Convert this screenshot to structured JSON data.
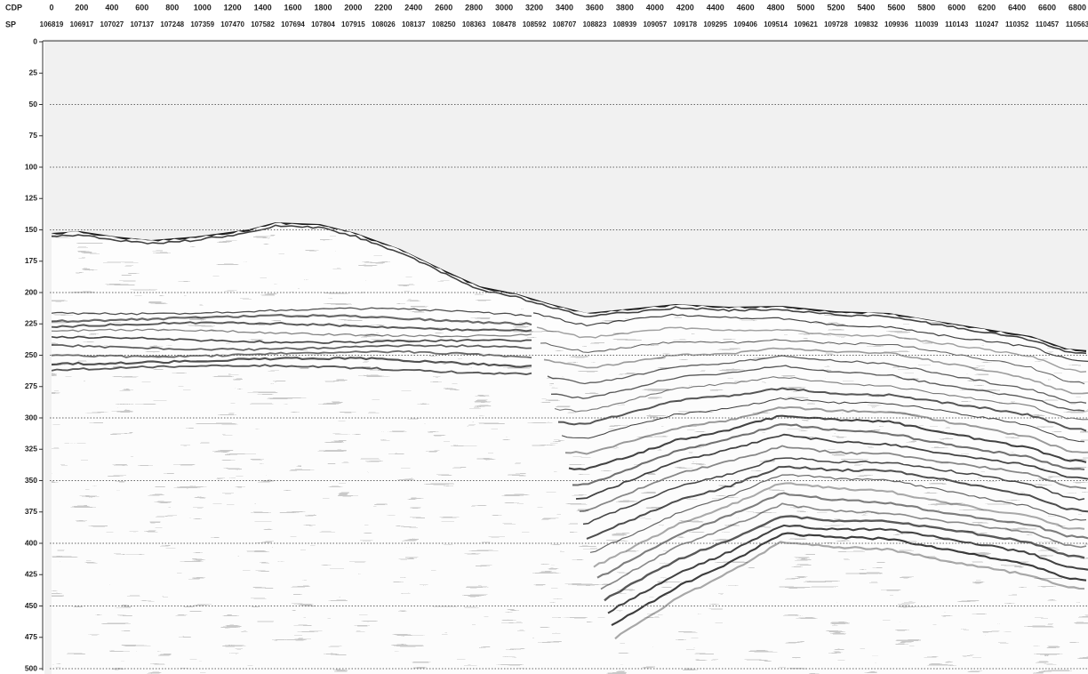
{
  "cdp_axis": {
    "label": "CDP",
    "ticks": [
      0,
      200,
      400,
      600,
      800,
      1000,
      1200,
      1400,
      1600,
      1800,
      2000,
      2200,
      2400,
      2600,
      2800,
      3000,
      3200,
      3400,
      3600,
      3800,
      4000,
      4200,
      4400,
      4600,
      4800,
      5000,
      5200,
      5400,
      5600,
      5800,
      6000,
      6200,
      6400,
      6600,
      6800
    ]
  },
  "sp_axis": {
    "label": "SP",
    "ticks": [
      106819,
      106917,
      107027,
      107137,
      107248,
      107359,
      107470,
      107582,
      107694,
      107804,
      107915,
      108026,
      108137,
      108250,
      108363,
      108478,
      108592,
      108707,
      108823,
      108939,
      109057,
      109178,
      109295,
      109406,
      109514,
      109621,
      109728,
      109832,
      109936,
      110039,
      110143,
      110247,
      110352,
      110457,
      110563
    ]
  },
  "time_axis": {
    "ticks": [
      0,
      25,
      50,
      75,
      100,
      125,
      150,
      175,
      200,
      225,
      250,
      275,
      300,
      325,
      350,
      375,
      400,
      425,
      450,
      475,
      500
    ]
  }
}
